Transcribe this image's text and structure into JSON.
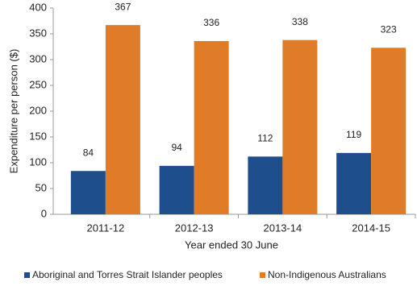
{
  "chart_data": {
    "type": "bar",
    "x_label": "Year ended 30 June",
    "y_label": "Expenditure per person ($)",
    "categories": [
      "2011-12",
      "2012-13",
      "2013-14",
      "2014-15"
    ],
    "series": [
      {
        "name": "Aboriginal and Torres Strait Islander peoples",
        "color": "#1f4e8c",
        "values": [
          84,
          94,
          112,
          119
        ]
      },
      {
        "name": "Non-Indigenous Australians",
        "color": "#e07b28",
        "values": [
          367,
          336,
          338,
          323
        ]
      }
    ],
    "ylim": [
      0,
      400
    ],
    "yticks": [
      0,
      50,
      100,
      150,
      200,
      250,
      300,
      350,
      400
    ],
    "grid": false,
    "legend": "bottom"
  }
}
